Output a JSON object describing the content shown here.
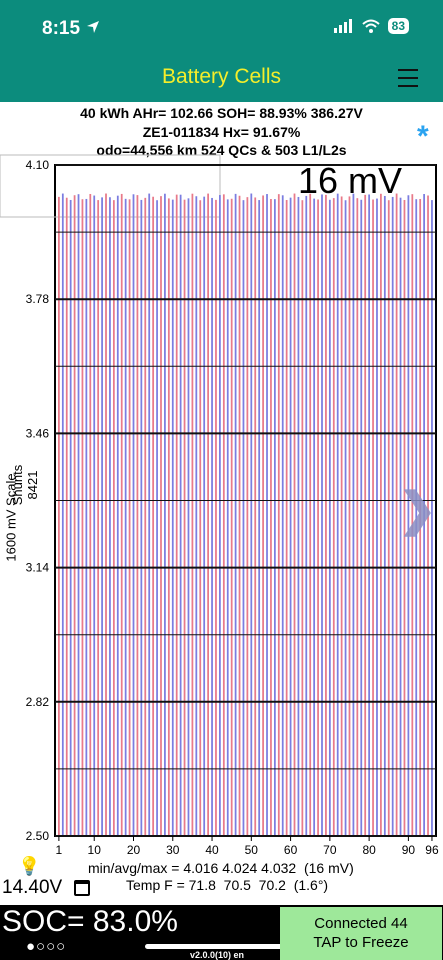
{
  "status_bar": {
    "time": "8:15",
    "battery": "83"
  },
  "nav": {
    "title": "Battery Cells"
  },
  "info": {
    "line1": "40 kWh  AHr= 102.66  SOH= 88.93%   386.27V",
    "line2": "ZE1-011834   Hx= 91.67%",
    "line3": "odo=44,556 km 524 QCs & 503 L1/L2s"
  },
  "chart_data": {
    "type": "bar",
    "y_axis_label": "1600 mV Scale",
    "shunts_label": "Shunts 8421",
    "delta_label": "16 mV",
    "ylim": [
      2.5,
      4.1
    ],
    "y_ticks": [
      "4.10",
      "3.78",
      "3.46",
      "3.14",
      "2.82",
      "2.50"
    ],
    "x_ticks": [
      "1",
      "10",
      "20",
      "30",
      "40",
      "50",
      "60",
      "70",
      "80",
      "90",
      "96"
    ],
    "cell_count": 96,
    "cell_voltage_min": 4.016,
    "cell_voltage_avg": 4.024,
    "cell_voltage_max": 4.032,
    "odd_cell_color": "#e87a8a",
    "even_cell_color": "#7b7de0"
  },
  "stats": {
    "minavgmax": "min/avg/max = 4.016 4.024 4.032  (16 mV)",
    "temp": "Temp F = 71.8  70.5  70.2  (1.6°)"
  },
  "bottom": {
    "voltage": "14.40V",
    "soc": "SOC= 83.0%",
    "dots": "●○○○",
    "version": "v2.0.0(10) en",
    "connect_line1": "Connected 44",
    "connect_line2": "TAP to Freeze"
  }
}
